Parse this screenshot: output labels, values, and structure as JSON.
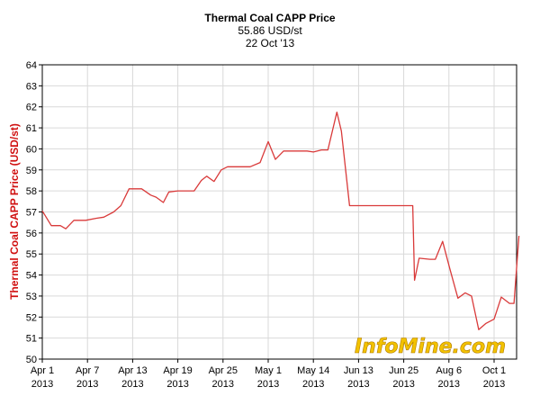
{
  "header": {
    "title": "Thermal Coal CAPP Price",
    "price": "55.86 USD/st",
    "date": "22 Oct '13"
  },
  "watermark": "InfoMine.com",
  "chart_data": {
    "type": "line",
    "title": "Thermal Coal CAPP Price",
    "subtitle": "55.86 USD/st",
    "xlabel": "",
    "ylabel": "Thermal Coal CAPP Price (USD/st)",
    "ylim": [
      50,
      64
    ],
    "yticks": [
      50,
      51,
      52,
      53,
      54,
      55,
      56,
      57,
      58,
      59,
      60,
      61,
      62,
      63,
      64
    ],
    "xticks": [
      {
        "x": 0,
        "line1": "Apr 1",
        "line2": "2013"
      },
      {
        "x": 1,
        "line1": "Apr 7",
        "line2": "2013"
      },
      {
        "x": 2,
        "line1": "Apr 13",
        "line2": "2013"
      },
      {
        "x": 3,
        "line1": "Apr 19",
        "line2": "2013"
      },
      {
        "x": 4,
        "line1": "Apr 25",
        "line2": "2013"
      },
      {
        "x": 5,
        "line1": "May 1",
        "line2": "2013"
      },
      {
        "x": 6,
        "line1": "May 14",
        "line2": "2013"
      },
      {
        "x": 7,
        "line1": "Jun 13",
        "line2": "2013"
      },
      {
        "x": 8,
        "line1": "Jun 25",
        "line2": "2013"
      },
      {
        "x": 9,
        "line1": "Aug 6",
        "line2": "2013"
      },
      {
        "x": 10,
        "line1": "Oct 1",
        "line2": "2013"
      }
    ],
    "xlim": [
      0,
      10.55
    ],
    "grid": true,
    "line_color": "#d93a3a",
    "series": [
      {
        "x": [
          0,
          0.2,
          0.4,
          0.52,
          0.7,
          0.96,
          1.2,
          1.36,
          1.58,
          1.74,
          1.92,
          2.2,
          2.4,
          2.52,
          2.68,
          2.8,
          3.0,
          3.16,
          3.36,
          3.52,
          3.64,
          3.8,
          3.96,
          4.1,
          4.32,
          4.6,
          4.82,
          5.0,
          5.16,
          5.34,
          5.6,
          5.86,
          6.0,
          6.18,
          6.32,
          6.52,
          6.62,
          6.8,
          7.3,
          7.6,
          7.94,
          8.2,
          8.24,
          8.34,
          8.58,
          8.7,
          8.86,
          9.02,
          9.2,
          9.36,
          9.5,
          9.66,
          9.82,
          10.0,
          10.16,
          10.34,
          10.44,
          10.55
        ],
        "y": [
          57.05,
          56.35,
          56.35,
          56.2,
          56.6,
          56.6,
          56.7,
          56.75,
          57.0,
          57.3,
          58.1,
          58.1,
          57.8,
          57.7,
          57.45,
          57.95,
          58.0,
          58.0,
          58.0,
          58.5,
          58.7,
          58.45,
          59.0,
          59.15,
          59.15,
          59.15,
          59.35,
          60.35,
          59.5,
          59.9,
          59.9,
          59.9,
          59.85,
          59.95,
          59.95,
          61.75,
          60.85,
          57.3,
          57.3,
          57.3,
          57.3,
          57.3,
          53.75,
          54.8,
          54.75,
          54.75,
          55.6,
          54.3,
          52.9,
          53.15,
          53.0,
          51.4,
          51.7,
          51.9,
          52.95,
          52.65,
          52.65,
          55.86
        ]
      }
    ]
  }
}
